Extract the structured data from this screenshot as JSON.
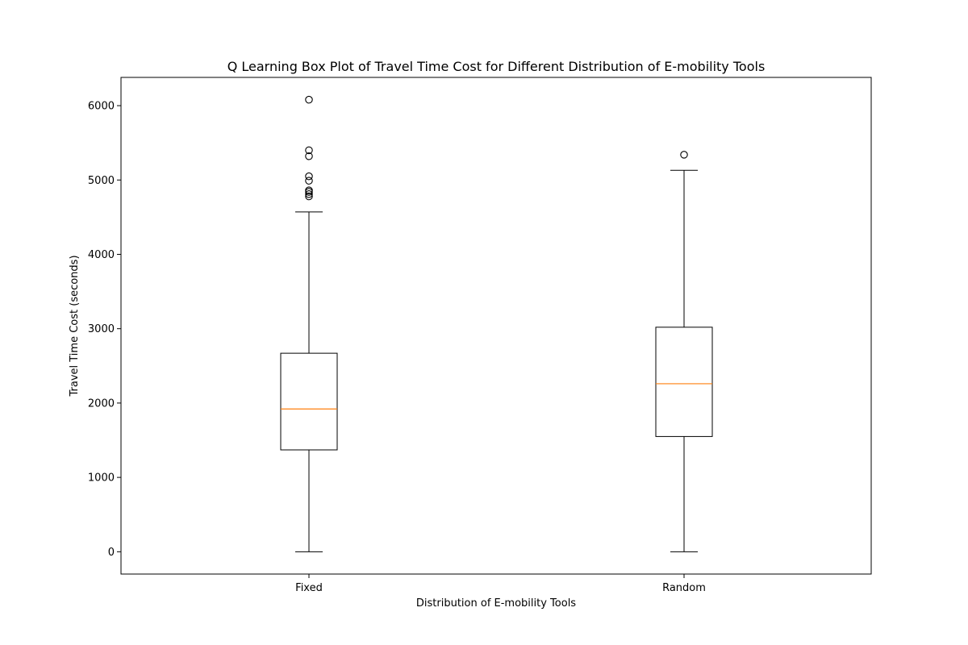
{
  "chart_data": {
    "type": "boxplot",
    "title": "Q Learning Box Plot of Travel Time Cost for Different Distribution of E-mobility Tools",
    "xlabel": "Distribution of E-mobility Tools",
    "ylabel": "Travel Time Cost (seconds)",
    "categories": [
      "Fixed",
      "Random"
    ],
    "ylim": [
      -300,
      6380
    ],
    "yticks": [
      0,
      1000,
      2000,
      3000,
      4000,
      5000,
      6000
    ],
    "grid": false,
    "colors": {
      "box": "#000000",
      "median": "#ff7f0e"
    },
    "boxes": [
      {
        "category": "Fixed",
        "whisker_low": 0,
        "q1": 1370,
        "median": 1920,
        "q3": 2670,
        "whisker_high": 4570,
        "outliers": [
          6080,
          5400,
          5320,
          5050,
          4990,
          4860,
          4840,
          4810,
          4780
        ]
      },
      {
        "category": "Random",
        "whisker_low": 0,
        "q1": 1550,
        "median": 2260,
        "q3": 3020,
        "whisker_high": 5130,
        "outliers": [
          5340
        ]
      }
    ]
  }
}
